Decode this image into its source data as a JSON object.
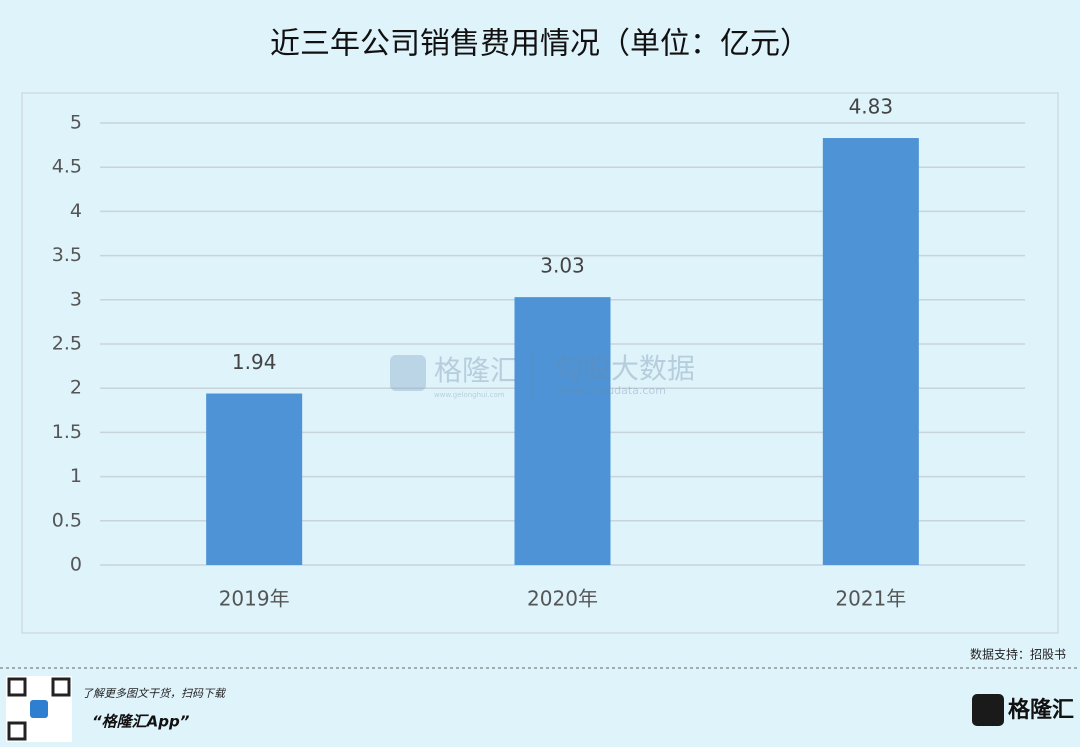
{
  "chart_data": {
    "type": "bar",
    "title": "近三年公司销售费用情况（单位：亿元）",
    "categories": [
      "2019年",
      "2020年",
      "2021年"
    ],
    "values": [
      1.94,
      3.03,
      4.83
    ],
    "color": "#4d93d5",
    "ylim": [
      0,
      5
    ],
    "yticks": [
      0,
      0.5,
      1,
      1.5,
      2,
      2.5,
      3,
      3.5,
      4,
      4.5,
      5
    ],
    "grid": true
  },
  "watermark": {
    "brand": "格隆汇",
    "brand_url": "www.gelonghui.com",
    "product": "勾股大数据",
    "product_url": "www.gogudata.com"
  },
  "source": "数据支持：招股书",
  "footer": {
    "promo": "了解更多图文干货，扫码下载",
    "app": "“格隆汇App”",
    "logo": "格隆汇"
  }
}
